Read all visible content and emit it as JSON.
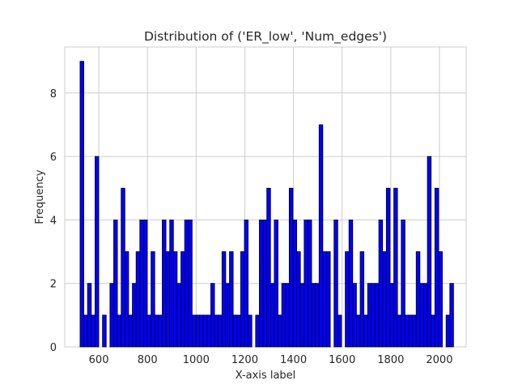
{
  "chart_data": {
    "type": "bar",
    "title": "Distribution of ('ER_low', 'Num_edges')",
    "xlabel": "X-axis label",
    "ylabel": "Frequency",
    "xlim": [
      460,
      2110
    ],
    "ylim": [
      0,
      9.45
    ],
    "xticks": [
      600,
      800,
      1000,
      1200,
      1400,
      1600,
      1800,
      2000
    ],
    "yticks": [
      0,
      2,
      4,
      6,
      8
    ],
    "grid": true,
    "bar_color": "#0000ff",
    "edge_color": "#000000",
    "bin_start": 523,
    "bin_width": 15.35,
    "values": [
      9,
      1,
      2,
      1,
      6,
      0,
      1,
      0,
      2,
      4,
      1,
      5,
      3,
      1,
      2,
      3,
      4,
      4,
      1,
      3,
      1,
      1,
      4,
      3,
      4,
      3,
      2,
      3,
      4,
      4,
      1,
      1,
      1,
      1,
      1,
      2,
      1,
      1,
      3,
      2,
      3,
      1,
      1,
      3,
      4,
      1,
      0,
      1,
      4,
      4,
      5,
      2,
      4,
      1,
      2,
      2,
      5,
      4,
      3,
      2,
      4,
      4,
      2,
      2,
      7,
      3,
      3,
      0,
      4,
      1,
      0,
      3,
      4,
      2,
      1,
      3,
      1,
      2,
      2,
      2,
      4,
      3,
      5,
      2,
      5,
      1,
      4,
      1,
      1,
      1,
      3,
      2,
      2,
      6,
      1,
      5,
      3,
      0,
      1,
      2
    ]
  }
}
